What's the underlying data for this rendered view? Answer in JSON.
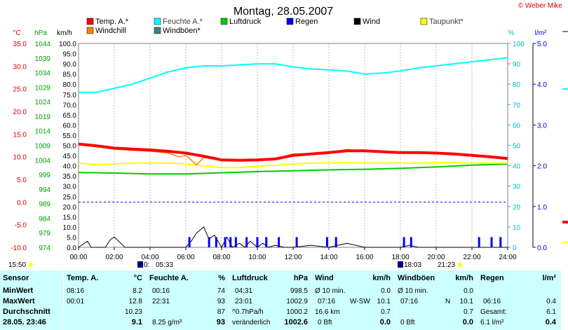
{
  "title": "Montag, 28.05.2007",
  "copyright": "© Weber Mike",
  "axes": {
    "temp_unit": "°C",
    "press_unit": "hPa",
    "wind_unit": "km/h",
    "hum_unit": "%",
    "rain_unit": "l/m²",
    "temp_ticks": [
      "35.0",
      "30.0",
      "25.0",
      "20.0",
      "15.0",
      "10.0",
      "5.0",
      "0.0",
      "-5.0",
      "-10.0"
    ],
    "press_ticks": [
      "1044",
      "1039",
      "1034",
      "1029",
      "1024",
      "1019",
      "1014",
      "1009",
      "1004",
      "999",
      "994",
      "989",
      "984",
      "979",
      "974"
    ],
    "wind_ticks": [
      "100.0",
      "95.0",
      "90.0",
      "85.0",
      "80.0",
      "75.0",
      "70.0",
      "65.0",
      "60.0",
      "55.0",
      "50.0",
      "45.0",
      "40.0",
      "35.0",
      "30.0",
      "25.0",
      "20.0",
      "15.0",
      "10.0",
      "5.0",
      "0.0"
    ],
    "hum_ticks": [
      "100",
      "90",
      "80",
      "70",
      "60",
      "50",
      "40",
      "30",
      "20",
      "10",
      "0"
    ],
    "rain_ticks": [
      "5.0",
      "4.0",
      "3.0",
      "2.0",
      "1.0",
      "0.0"
    ],
    "x_ticks": [
      "00:00",
      "02:00",
      "04:00",
      "06:00",
      "08:00",
      "10:00",
      "12:00",
      "14:00",
      "16:00",
      "18:00",
      "20:00",
      "22:00",
      "24:00"
    ]
  },
  "legend": [
    {
      "label": "Temp. A.*",
      "color": "#ff0000"
    },
    {
      "label": "Feuchte A.*",
      "color": "#00ffff"
    },
    {
      "label": "Luftdruck",
      "color": "#00cc00"
    },
    {
      "label": "Regen",
      "color": "#0000ff"
    },
    {
      "label": "Wind",
      "color": "#000000"
    },
    {
      "label": "Taupunkt*",
      "color": "#ffff00"
    },
    {
      "label": "Windchill",
      "color": "#ff8000"
    },
    {
      "label": "Windböen*",
      "color": "#408080"
    }
  ],
  "sun": {
    "sunrise": "05:33",
    "sunset": "21:23",
    "moonset": "15:50",
    "moonrise": "18:03",
    "sunrise_marker": "0:"
  },
  "chart_data": {
    "type": "line",
    "x_unit": "hours",
    "series": [
      {
        "name": "Temp. A.*",
        "unit": "°C",
        "x": [
          0,
          1,
          2,
          3,
          4,
          5,
          6,
          7,
          8,
          9,
          10,
          11,
          12,
          13,
          14,
          15,
          16,
          17,
          18,
          19,
          20,
          21,
          22,
          23,
          24
        ],
        "values": [
          12.8,
          12.4,
          11.9,
          11.7,
          11.5,
          11.2,
          10.8,
          10.1,
          9.3,
          9.2,
          9.3,
          9.5,
          10.3,
          10.6,
          10.9,
          11.3,
          11.3,
          11.1,
          10.9,
          10.9,
          10.8,
          10.6,
          10.3,
          10.0,
          9.6
        ]
      },
      {
        "name": "Feuchte A.*",
        "unit": "%",
        "x": [
          0,
          1,
          2,
          3,
          4,
          5,
          6,
          7,
          8,
          9,
          10,
          11,
          12,
          13,
          14,
          15,
          16,
          17,
          18,
          19,
          20,
          21,
          22,
          23,
          24
        ],
        "values": [
          76,
          76,
          78,
          80,
          83,
          86,
          88,
          89,
          89,
          89.5,
          90,
          90,
          88.5,
          87.5,
          87,
          86.5,
          85,
          85.5,
          86.5,
          88,
          89,
          90,
          91,
          92,
          93
        ]
      },
      {
        "name": "Luftdruck",
        "unit": "hPa",
        "x": [
          0,
          2,
          4,
          6,
          8,
          10,
          12,
          14,
          16,
          18,
          20,
          22,
          24
        ],
        "values": [
          999.7,
          999.5,
          999.2,
          999.2,
          999.6,
          1000.0,
          1000.3,
          1000.6,
          1000.8,
          1001.1,
          1001.6,
          1002.2,
          1002.6
        ]
      },
      {
        "name": "Taupunkt*",
        "unit": "°C",
        "x": [
          0,
          1,
          2,
          3,
          4,
          5,
          6,
          7,
          8,
          9,
          10,
          11,
          12,
          13,
          14,
          15,
          16,
          17,
          18,
          19,
          20,
          21,
          22,
          23,
          24
        ],
        "values": [
          8.6,
          8.2,
          8.4,
          8.6,
          8.6,
          8.6,
          8.4,
          8.0,
          7.6,
          7.6,
          7.9,
          8.1,
          8.4,
          8.6,
          8.6,
          8.7,
          8.6,
          8.6,
          8.6,
          8.6,
          8.7,
          8.7,
          8.6,
          8.6,
          8.6
        ]
      },
      {
        "name": "Windchill",
        "unit": "°C",
        "x": [
          0,
          1,
          2,
          3,
          4,
          5,
          5.6,
          6,
          6.6,
          7,
          8,
          9,
          10,
          11,
          12,
          13,
          14,
          15,
          16,
          17,
          18,
          19,
          20,
          21,
          22,
          23,
          24
        ],
        "values": [
          12.6,
          12.2,
          11.7,
          11.4,
          11.2,
          10.8,
          10.0,
          10.3,
          8.2,
          9.8,
          9.3,
          9.1,
          9.3,
          9.6,
          10.6,
          10.7,
          10.8,
          11.6,
          11.3,
          11.1,
          10.9,
          10.9,
          10.8,
          10.6,
          10.3,
          10.0,
          9.6
        ]
      },
      {
        "name": "Wind",
        "unit": "km/h",
        "x": [
          0,
          0.5,
          0.7,
          1,
          1.5,
          1.8,
          2,
          2.6,
          3,
          3.5,
          4,
          5,
          6,
          6.3,
          6.6,
          7,
          7.3,
          7.6,
          8,
          8.3,
          8.6,
          9,
          9.3,
          9.6,
          10,
          10.3,
          10.6,
          11,
          11.5,
          12,
          13,
          14,
          15,
          16,
          17,
          18,
          18.5,
          19,
          20,
          21,
          22,
          23,
          24
        ],
        "values": [
          0,
          3,
          0,
          0,
          0,
          4,
          5,
          0,
          0,
          0,
          0,
          0,
          0,
          3,
          7,
          10,
          4,
          6,
          0,
          5,
          0,
          2,
          0,
          3,
          0,
          2,
          0,
          1,
          0,
          0,
          1,
          0,
          2,
          0,
          0,
          0,
          1,
          0,
          0,
          0,
          0,
          0,
          0
        ]
      },
      {
        "name": "Regen",
        "unit": "l/m²",
        "x": [
          6.2,
          7.3,
          7.7,
          8.2,
          8.5,
          8.8,
          9.4,
          10.0,
          10.5,
          11.2,
          12.2,
          13.9,
          14.4,
          18.2,
          18.6,
          22.4,
          23.1,
          23.6
        ],
        "values": [
          0.25,
          0.25,
          0.25,
          0.25,
          0.25,
          0.25,
          0.25,
          0.25,
          0.25,
          0.25,
          0.25,
          0.25,
          0.25,
          0.25,
          0.25,
          0.25,
          0.25,
          0.25
        ]
      }
    ]
  },
  "stats": {
    "date": "28.05. 23:46",
    "sensor": {
      "title": "Sensor",
      "rows": [
        "MinWert",
        "MaxWert",
        "Durchschnitt"
      ]
    },
    "temp": {
      "title": "Temp. A.",
      "unit": "°C",
      "min_time": "08:16",
      "min": "8.2",
      "max_time": "00:01",
      "max": "12.8",
      "avg": "10.23",
      "current": "9.1"
    },
    "hum": {
      "title": "Feuchte A.",
      "unit": "%",
      "min_time": "00:16",
      "min": "74",
      "max_time": "22:31",
      "max": "93",
      "avg": "87",
      "abs": "8.25 g/m³",
      "current": "93"
    },
    "press": {
      "title": "Luftdruck",
      "unit": "hPa",
      "min_time": "04:31",
      "min": "998.5",
      "max_time": "23:01",
      "max": "1002.9",
      "trend": "^0.7hPa/h",
      "avg": "1000.2",
      "tendency": "veränderlich",
      "current": "1002.6"
    },
    "wind": {
      "title": "Wind",
      "unit": "km/h",
      "avg10": "Ø 10 min.",
      "avg10_val": "0.0",
      "max_time": "07:16",
      "max_dir": "W-SW",
      "max": "10.1",
      "dist": "16.6 km",
      "avg": "0.7",
      "bft": "0 Bft",
      "current": "0.0"
    },
    "gust": {
      "title": "Windböen",
      "unit": "km/h",
      "avg10": "Ø 10 min.",
      "avg10_val": "0.0",
      "max_time": "07:16",
      "max_dir": "N",
      "max": "10.1",
      "avg": "0.7",
      "bft": "0 Bft",
      "current": "0.0"
    },
    "rain": {
      "title": "Regen",
      "unit": "l/m²",
      "max_time": "06:16",
      "max": "0.4",
      "total_label": "Gesamt:",
      "total": "6.1",
      "current_total": "6.1 l/m²",
      "current": "0.4"
    }
  },
  "colors": {
    "temp": "#ff0000",
    "hum": "#00ffff",
    "press": "#00cc00",
    "rain": "#0000ff",
    "wind": "#000000",
    "dew": "#ffff00",
    "chill": "#ff8000",
    "gust": "#408080",
    "stats_bg": "#ccffff"
  }
}
